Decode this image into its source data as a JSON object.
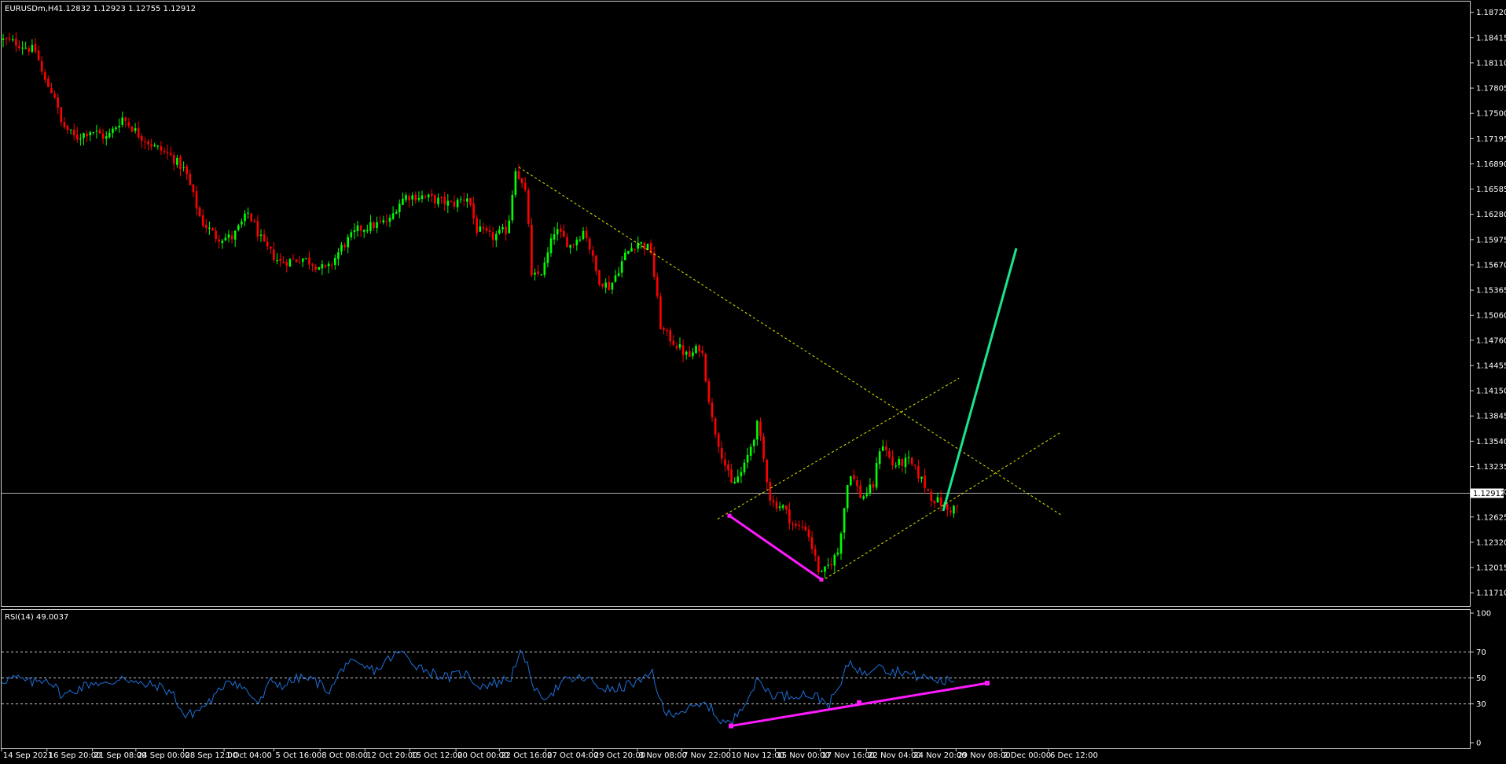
{
  "header": {
    "symbol": "EURUSDm,H4",
    "ohlc": "1.12832 1.12923 1.12755 1.12912"
  },
  "indicator": {
    "label": "RSI(14) 49.0037"
  },
  "colors": {
    "background": "#000000",
    "bull": "#00ff00",
    "bear": "#ff0000",
    "rsi_line": "#1e6fd9",
    "trend_dotted": "#e6e600",
    "divergence": "#ff1aff",
    "projection": "#19e68c",
    "price_line": "#b0b0b0"
  },
  "chart_data": [
    {
      "type": "candlestick",
      "ylim": [
        1.1155,
        1.1885
      ],
      "current_price": 1.12912,
      "yticks": [
        "1.18720",
        "1.18415",
        "1.18110",
        "1.17805",
        "1.17500",
        "1.17195",
        "1.16890",
        "1.16585",
        "1.16280",
        "1.15975",
        "1.15670",
        "1.15365",
        "1.15060",
        "1.14760",
        "1.14455",
        "1.14150",
        "1.13845",
        "1.13540",
        "1.13235",
        "1.12930",
        "1.12625",
        "1.12320",
        "1.12015",
        "1.11710"
      ],
      "price_path": [
        [
          0,
          1.184
        ],
        [
          25,
          1.1835
        ],
        [
          50,
          1.1825
        ],
        [
          60,
          1.179
        ],
        [
          75,
          1.177
        ],
        [
          80,
          1.174
        ],
        [
          100,
          1.172
        ],
        [
          120,
          1.173
        ],
        [
          140,
          1.172
        ],
        [
          160,
          1.1745
        ],
        [
          180,
          1.1725
        ],
        [
          200,
          1.171
        ],
        [
          220,
          1.17
        ],
        [
          240,
          1.168
        ],
        [
          260,
          1.162
        ],
        [
          280,
          1.16
        ],
        [
          300,
          1.16
        ],
        [
          320,
          1.163
        ],
        [
          340,
          1.159
        ],
        [
          360,
          1.157
        ],
        [
          390,
          1.1575
        ],
        [
          420,
          1.156
        ],
        [
          440,
          1.159
        ],
        [
          460,
          1.161
        ],
        [
          480,
          1.1615
        ],
        [
          500,
          1.162
        ],
        [
          510,
          1.164
        ],
        [
          520,
          1.165
        ],
        [
          540,
          1.165
        ],
        [
          560,
          1.1645
        ],
        [
          580,
          1.164
        ],
        [
          600,
          1.165
        ],
        [
          610,
          1.161
        ],
        [
          630,
          1.16
        ],
        [
          650,
          1.161
        ],
        [
          660,
          1.1685
        ],
        [
          675,
          1.1645
        ],
        [
          680,
          1.155
        ],
        [
          695,
          1.156
        ],
        [
          710,
          1.161
        ],
        [
          730,
          1.159
        ],
        [
          748,
          1.161
        ],
        [
          765,
          1.155
        ],
        [
          780,
          1.154
        ],
        [
          800,
          1.158
        ],
        [
          815,
          1.1595
        ],
        [
          832,
          1.1585
        ],
        [
          845,
          1.149
        ],
        [
          860,
          1.1475
        ],
        [
          880,
          1.1455
        ],
        [
          896,
          1.147
        ],
        [
          910,
          1.138
        ],
        [
          925,
          1.133
        ],
        [
          935,
          1.13
        ],
        [
          950,
          1.132
        ],
        [
          968,
          1.1375
        ],
        [
          985,
          1.128
        ],
        [
          1000,
          1.1275
        ],
        [
          1015,
          1.125
        ],
        [
          1030,
          1.125
        ],
        [
          1048,
          1.119
        ],
        [
          1070,
          1.122
        ],
        [
          1085,
          1.132
        ],
        [
          1100,
          1.1285
        ],
        [
          1115,
          1.13
        ],
        [
          1125,
          1.1355
        ],
        [
          1140,
          1.1325
        ],
        [
          1160,
          1.133
        ],
        [
          1175,
          1.131
        ],
        [
          1190,
          1.1285
        ],
        [
          1200,
          1.128
        ],
        [
          1210,
          1.127
        ],
        [
          1220,
          1.1275
        ]
      ],
      "trendlines": [
        {
          "style": "dotted",
          "color": "#e6e600",
          "points": [
            [
              660,
              1.1685
            ],
            [
              1350,
              1.1265
            ]
          ]
        },
        {
          "style": "dotted",
          "color": "#e6e600",
          "points": [
            [
              913,
              1.126
            ],
            [
              1220,
              1.143
            ]
          ]
        },
        {
          "style": "dotted",
          "color": "#e6e600",
          "points": [
            [
              1045,
              1.1185
            ],
            [
              1350,
              1.1365
            ]
          ]
        },
        {
          "style": "solid",
          "color": "#ff1aff",
          "points": [
            [
              928,
              1.1264
            ],
            [
              1045,
              1.1187
            ]
          ]
        },
        {
          "style": "solid",
          "color": "#19e68c",
          "points": [
            [
              1200,
              1.127
            ],
            [
              1293,
              1.1587
            ]
          ]
        }
      ]
    },
    {
      "type": "line",
      "name": "RSI(14)",
      "ylim": [
        0,
        100
      ],
      "levels": [
        70,
        50,
        30
      ],
      "yticks": [
        "100",
        "70",
        "50",
        "30",
        "0"
      ],
      "x_labels": [
        "14 Sep 2021",
        "16 Sep 20:00",
        "21 Sep 08:00",
        "24 Sep 00:00",
        "28 Sep 12:00",
        "1 Oct 04:00",
        "5 Oct 16:00",
        "8 Oct 08:00",
        "12 Oct 20:00",
        "15 Oct 12:00",
        "20 Oct 00:00",
        "22 Oct 16:00",
        "27 Oct 04:00",
        "29 Oct 20:00",
        "3 Nov 08:00",
        "7 Nov 22:00",
        "10 Nov 12:00",
        "15 Nov 00:00",
        "17 Nov 16:00",
        "22 Nov 04:00",
        "24 Nov 20:00",
        "29 Nov 08:00",
        "2 Dec 00:00",
        "6 Dec 12:00"
      ],
      "path": [
        [
          0,
          48
        ],
        [
          20,
          50
        ],
        [
          40,
          46
        ],
        [
          60,
          50
        ],
        [
          80,
          36
        ],
        [
          100,
          42
        ],
        [
          120,
          47
        ],
        [
          140,
          44
        ],
        [
          155,
          52
        ],
        [
          175,
          45
        ],
        [
          200,
          44
        ],
        [
          220,
          38
        ],
        [
          235,
          20
        ],
        [
          255,
          26
        ],
        [
          275,
          36
        ],
        [
          290,
          50
        ],
        [
          310,
          42
        ],
        [
          330,
          30
        ],
        [
          345,
          48
        ],
        [
          360,
          44
        ],
        [
          380,
          50
        ],
        [
          400,
          48
        ],
        [
          420,
          40
        ],
        [
          440,
          62
        ],
        [
          460,
          58
        ],
        [
          480,
          56
        ],
        [
          495,
          65
        ],
        [
          510,
          70
        ],
        [
          530,
          60
        ],
        [
          550,
          54
        ],
        [
          570,
          50
        ],
        [
          590,
          54
        ],
        [
          610,
          44
        ],
        [
          630,
          46
        ],
        [
          650,
          50
        ],
        [
          660,
          70
        ],
        [
          670,
          60
        ],
        [
          685,
          35
        ],
        [
          700,
          38
        ],
        [
          720,
          48
        ],
        [
          745,
          50
        ],
        [
          760,
          44
        ],
        [
          780,
          40
        ],
        [
          800,
          45
        ],
        [
          820,
          48
        ],
        [
          830,
          55
        ],
        [
          845,
          22
        ],
        [
          860,
          24
        ],
        [
          880,
          26
        ],
        [
          900,
          30
        ],
        [
          915,
          18
        ],
        [
          930,
          14
        ],
        [
          945,
          30
        ],
        [
          965,
          48
        ],
        [
          980,
          38
        ],
        [
          1000,
          36
        ],
        [
          1020,
          38
        ],
        [
          1040,
          35
        ],
        [
          1055,
          30
        ],
        [
          1070,
          45
        ],
        [
          1080,
          63
        ],
        [
          1090,
          58
        ],
        [
          1100,
          52
        ],
        [
          1110,
          58
        ],
        [
          1120,
          64
        ],
        [
          1130,
          54
        ],
        [
          1145,
          56
        ],
        [
          1160,
          52
        ],
        [
          1180,
          50
        ],
        [
          1200,
          47
        ],
        [
          1215,
          49
        ]
      ],
      "divergence": [
        [
          930,
          13
        ],
        [
          1093,
          31
        ],
        [
          1256,
          46
        ]
      ]
    }
  ]
}
